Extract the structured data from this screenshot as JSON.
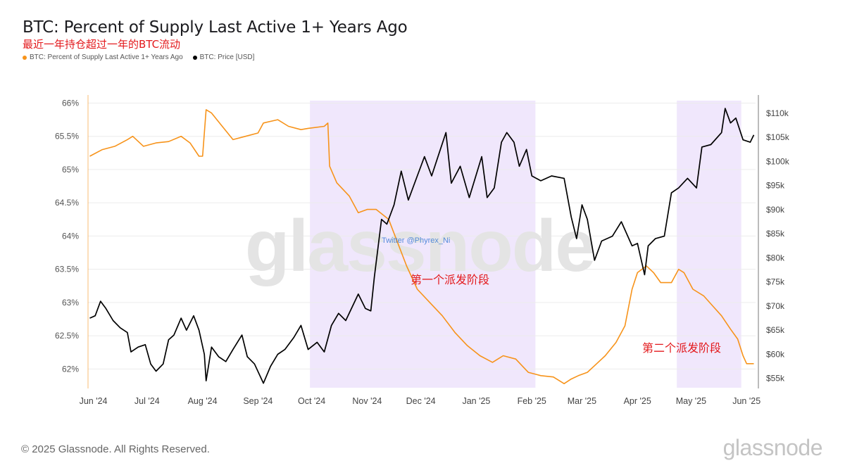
{
  "header": {
    "title": "BTC: Percent of Supply Last Active 1+ Years Ago",
    "subtitle": "最近一年持仓超过一年的BTC流动"
  },
  "legend": [
    {
      "label": "BTC: Percent of Supply Last Active 1+ Years Ago",
      "color": "#f7931a"
    },
    {
      "label": "BTC: Price [USD]",
      "color": "#000000"
    }
  ],
  "footer": {
    "copyright": "© 2025 Glassnode. All Rights Reserved.",
    "brand": "glassnode"
  },
  "chart_data": {
    "type": "line",
    "x_ticks": [
      "Jun '24",
      "Jul '24",
      "Aug '24",
      "Sep '24",
      "Oct '24",
      "Nov '24",
      "Dec '24",
      "Jan '25",
      "Feb '25",
      "Mar '25",
      "Apr '25",
      "May '25",
      "Jun '25"
    ],
    "y_left": {
      "ticks": [
        "66%",
        "65.5%",
        "65%",
        "64.5%",
        "64%",
        "63.5%",
        "63%",
        "62.5%",
        "62%"
      ],
      "range": [
        61.75,
        66.1
      ]
    },
    "y_right": {
      "ticks": [
        "$110k",
        "$105k",
        "$100k",
        "$95k",
        "$90k",
        "$85k",
        "$80k",
        "$75k",
        "$70k",
        "$65k",
        "$60k",
        "$55k"
      ],
      "range": [
        53500,
        113500
      ]
    },
    "highlight_bands": [
      {
        "start": "2024-10-02",
        "end": "2025-02-05",
        "label": "第一个派发阶段"
      },
      {
        "start": "2025-04-25",
        "end": "2025-05-31",
        "label": "第二个派发阶段"
      }
    ],
    "watermark_text": "Twitter @Phyrex_Ni",
    "series": [
      {
        "name": "BTC: Percent of Supply Last Active 1+ Years Ago",
        "axis": "left",
        "color": "#f7931a",
        "points": [
          [
            "2024-06-01",
            65.2
          ],
          [
            "2024-06-08",
            65.3
          ],
          [
            "2024-06-15",
            65.35
          ],
          [
            "2024-06-22",
            65.45
          ],
          [
            "2024-06-25",
            65.5
          ],
          [
            "2024-07-01",
            65.35
          ],
          [
            "2024-07-08",
            65.4
          ],
          [
            "2024-07-15",
            65.42
          ],
          [
            "2024-07-22",
            65.5
          ],
          [
            "2024-07-27",
            65.4
          ],
          [
            "2024-08-01",
            65.2
          ],
          [
            "2024-08-03",
            65.2
          ],
          [
            "2024-08-05",
            65.9
          ],
          [
            "2024-08-08",
            65.85
          ],
          [
            "2024-08-14",
            65.65
          ],
          [
            "2024-08-20",
            65.45
          ],
          [
            "2024-08-27",
            65.5
          ],
          [
            "2024-09-03",
            65.55
          ],
          [
            "2024-09-06",
            65.7
          ],
          [
            "2024-09-14",
            65.75
          ],
          [
            "2024-09-20",
            65.65
          ],
          [
            "2024-09-27",
            65.6
          ],
          [
            "2024-10-01",
            65.62
          ],
          [
            "2024-10-10",
            65.65
          ],
          [
            "2024-10-12",
            65.7
          ],
          [
            "2024-10-13",
            65.05
          ],
          [
            "2024-10-17",
            64.8
          ],
          [
            "2024-10-24",
            64.6
          ],
          [
            "2024-10-29",
            64.35
          ],
          [
            "2024-11-03",
            64.4
          ],
          [
            "2024-11-08",
            64.4
          ],
          [
            "2024-11-15",
            64.25
          ],
          [
            "2024-11-20",
            63.9
          ],
          [
            "2024-11-25",
            63.55
          ],
          [
            "2024-12-01",
            63.2
          ],
          [
            "2024-12-08",
            63.0
          ],
          [
            "2024-12-15",
            62.8
          ],
          [
            "2024-12-22",
            62.55
          ],
          [
            "2024-12-29",
            62.35
          ],
          [
            "2025-01-05",
            62.2
          ],
          [
            "2025-01-12",
            62.1
          ],
          [
            "2025-01-18",
            62.2
          ],
          [
            "2025-01-25",
            62.15
          ],
          [
            "2025-02-01",
            61.95
          ],
          [
            "2025-02-08",
            61.9
          ],
          [
            "2025-02-15",
            61.88
          ],
          [
            "2025-02-21",
            61.78
          ],
          [
            "2025-02-25",
            61.85
          ],
          [
            "2025-03-01",
            61.9
          ],
          [
            "2025-03-06",
            61.95
          ],
          [
            "2025-03-10",
            62.05
          ],
          [
            "2025-03-16",
            62.2
          ],
          [
            "2025-03-22",
            62.4
          ],
          [
            "2025-03-27",
            62.65
          ],
          [
            "2025-03-31",
            63.2
          ],
          [
            "2025-04-03",
            63.45
          ],
          [
            "2025-04-08",
            63.55
          ],
          [
            "2025-04-12",
            63.45
          ],
          [
            "2025-04-16",
            63.3
          ],
          [
            "2025-04-22",
            63.3
          ],
          [
            "2025-04-26",
            63.5
          ],
          [
            "2025-04-29",
            63.45
          ],
          [
            "2025-05-04",
            63.2
          ],
          [
            "2025-05-10",
            63.1
          ],
          [
            "2025-05-15",
            62.95
          ],
          [
            "2025-05-20",
            62.8
          ],
          [
            "2025-05-25",
            62.6
          ],
          [
            "2025-05-29",
            62.45
          ],
          [
            "2025-06-01",
            62.2
          ],
          [
            "2025-06-03",
            62.08
          ],
          [
            "2025-06-07",
            62.08
          ]
        ]
      },
      {
        "name": "BTC: Price [USD]",
        "axis": "right",
        "color": "#000000",
        "points": [
          [
            "2024-06-01",
            67500
          ],
          [
            "2024-06-04",
            68000
          ],
          [
            "2024-06-07",
            71000
          ],
          [
            "2024-06-10",
            69500
          ],
          [
            "2024-06-14",
            67000
          ],
          [
            "2024-06-18",
            65500
          ],
          [
            "2024-06-22",
            64500
          ],
          [
            "2024-06-24",
            60500
          ],
          [
            "2024-06-28",
            61500
          ],
          [
            "2024-07-02",
            62000
          ],
          [
            "2024-07-05",
            58000
          ],
          [
            "2024-07-08",
            56500
          ],
          [
            "2024-07-12",
            58000
          ],
          [
            "2024-07-15",
            63000
          ],
          [
            "2024-07-18",
            64000
          ],
          [
            "2024-07-22",
            67500
          ],
          [
            "2024-07-25",
            65000
          ],
          [
            "2024-07-29",
            68000
          ],
          [
            "2024-08-01",
            65000
          ],
          [
            "2024-08-04",
            60000
          ],
          [
            "2024-08-05",
            54500
          ],
          [
            "2024-08-08",
            61500
          ],
          [
            "2024-08-12",
            59500
          ],
          [
            "2024-08-16",
            58500
          ],
          [
            "2024-08-20",
            61000
          ],
          [
            "2024-08-25",
            64000
          ],
          [
            "2024-08-28",
            59500
          ],
          [
            "2024-09-01",
            58000
          ],
          [
            "2024-09-06",
            54000
          ],
          [
            "2024-09-10",
            57500
          ],
          [
            "2024-09-14",
            60000
          ],
          [
            "2024-09-18",
            61000
          ],
          [
            "2024-09-23",
            63500
          ],
          [
            "2024-09-27",
            66000
          ],
          [
            "2024-10-01",
            61000
          ],
          [
            "2024-10-06",
            62500
          ],
          [
            "2024-10-10",
            60500
          ],
          [
            "2024-10-14",
            66000
          ],
          [
            "2024-10-18",
            68500
          ],
          [
            "2024-10-22",
            67000
          ],
          [
            "2024-10-29",
            72500
          ],
          [
            "2024-11-02",
            69500
          ],
          [
            "2024-11-05",
            69000
          ],
          [
            "2024-11-07",
            76000
          ],
          [
            "2024-11-11",
            88000
          ],
          [
            "2024-11-14",
            87000
          ],
          [
            "2024-11-18",
            91000
          ],
          [
            "2024-11-22",
            98000
          ],
          [
            "2024-11-26",
            92000
          ],
          [
            "2024-12-01",
            97000
          ],
          [
            "2024-12-05",
            101000
          ],
          [
            "2024-12-09",
            97000
          ],
          [
            "2024-12-13",
            101500
          ],
          [
            "2024-12-17",
            106000
          ],
          [
            "2024-12-20",
            95500
          ],
          [
            "2024-12-25",
            99000
          ],
          [
            "2024-12-30",
            92500
          ],
          [
            "2025-01-06",
            101000
          ],
          [
            "2025-01-09",
            92500
          ],
          [
            "2025-01-13",
            94500
          ],
          [
            "2025-01-17",
            104000
          ],
          [
            "2025-01-20",
            106000
          ],
          [
            "2025-01-24",
            104000
          ],
          [
            "2025-01-27",
            99000
          ],
          [
            "2025-01-31",
            102500
          ],
          [
            "2025-02-03",
            97000
          ],
          [
            "2025-02-08",
            96000
          ],
          [
            "2025-02-14",
            97000
          ],
          [
            "2025-02-21",
            96500
          ],
          [
            "2025-02-25",
            88500
          ],
          [
            "2025-02-28",
            84000
          ],
          [
            "2025-03-03",
            91000
          ],
          [
            "2025-03-06",
            88000
          ],
          [
            "2025-03-10",
            79500
          ],
          [
            "2025-03-14",
            83500
          ],
          [
            "2025-03-20",
            84500
          ],
          [
            "2025-03-25",
            87500
          ],
          [
            "2025-03-31",
            82500
          ],
          [
            "2025-04-03",
            83000
          ],
          [
            "2025-04-07",
            76500
          ],
          [
            "2025-04-09",
            82500
          ],
          [
            "2025-04-13",
            84000
          ],
          [
            "2025-04-18",
            84500
          ],
          [
            "2025-04-22",
            93500
          ],
          [
            "2025-04-26",
            94500
          ],
          [
            "2025-05-01",
            96500
          ],
          [
            "2025-05-06",
            94500
          ],
          [
            "2025-05-09",
            103000
          ],
          [
            "2025-05-14",
            103500
          ],
          [
            "2025-05-20",
            106000
          ],
          [
            "2025-05-22",
            111000
          ],
          [
            "2025-05-25",
            108000
          ],
          [
            "2025-05-28",
            109000
          ],
          [
            "2025-06-01",
            104500
          ],
          [
            "2025-06-05",
            104000
          ],
          [
            "2025-06-07",
            105500
          ]
        ]
      }
    ]
  }
}
